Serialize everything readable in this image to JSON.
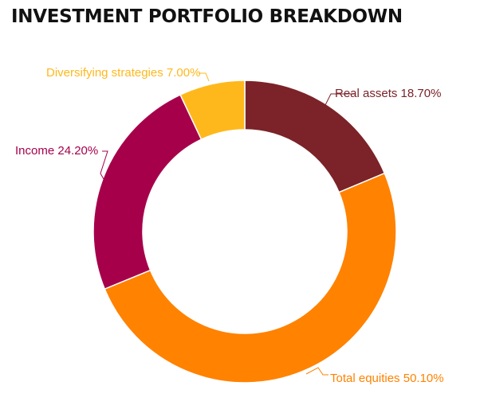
{
  "chart_data": {
    "type": "pie",
    "title": "INVESTMENT PORTFOLIO BREAKDOWN",
    "donut": true,
    "categories": [
      "Real assets",
      "Total equities",
      "Income",
      "Diversifying strategies"
    ],
    "values": [
      18.7,
      50.1,
      24.2,
      7.0
    ],
    "value_labels": [
      "18.70%",
      "50.10%",
      "24.20%",
      "7.00%"
    ],
    "colors": [
      "#7b2328",
      "#ff8200",
      "#a6004b",
      "#ffb81c"
    ],
    "legend": "none (labels on leader lines)"
  }
}
